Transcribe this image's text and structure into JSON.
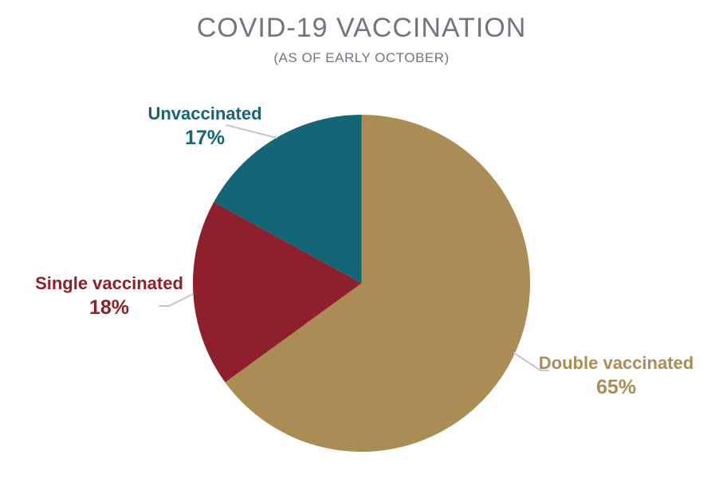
{
  "chart_data": {
    "type": "pie",
    "title": "COVID-19 VACCINATION",
    "subtitle": "(AS OF EARLY OCTOBER)",
    "title_color": "#74747E",
    "start_angle_deg": 0,
    "direction": "clockwise",
    "labels_outside": true,
    "legend": "none",
    "leader_line_color": "#C6C6CB",
    "slices": [
      {
        "label": "Double vaccinated",
        "value": 65,
        "pct_label": "65%",
        "color": "#AC8C55"
      },
      {
        "label": "Single vaccinated",
        "value": 18,
        "pct_label": "18%",
        "color": "#8E1F2D"
      },
      {
        "label": "Unvaccinated",
        "value": 17,
        "pct_label": "17%",
        "color": "#146576"
      }
    ]
  }
}
